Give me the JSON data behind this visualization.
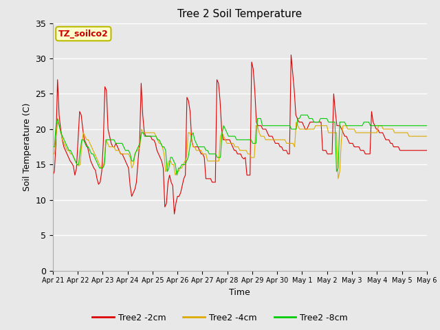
{
  "title": "Tree 2 Soil Temperature",
  "xlabel": "Time",
  "ylabel": "Soil Temperature (C)",
  "annotation_text": "TZ_soilco2",
  "annotation_bg": "#ffffcc",
  "annotation_border": "#bbbb00",
  "annotation_fg": "#cc0000",
  "ylim": [
    0,
    35
  ],
  "yticks": [
    0,
    5,
    10,
    15,
    20,
    25,
    30,
    35
  ],
  "bg_color": "#e8e8e8",
  "grid_color": "#ffffff",
  "line_colors": [
    "#dd0000",
    "#ddaa00",
    "#00cc00"
  ],
  "line_labels": [
    "Tree2 -2cm",
    "Tree2 -4cm",
    "Tree2 -8cm"
  ],
  "x_tick_labels": [
    "Apr 21",
    "Apr 22",
    "Apr 23",
    "Apr 24",
    "Apr 25",
    "Apr 26",
    "Apr 27",
    "Apr 28",
    "Apr 29",
    "Apr 30",
    "May 1",
    "May 2",
    "May 3",
    "May 4",
    "May 5",
    "May 6"
  ],
  "red_data": [
    13.5,
    14.0,
    18.0,
    27.0,
    22.0,
    20.0,
    18.5,
    17.5,
    17.0,
    16.5,
    16.0,
    15.5,
    15.2,
    14.8,
    13.5,
    14.5,
    18.5,
    22.5,
    22.0,
    20.0,
    18.5,
    18.0,
    17.5,
    16.5,
    15.5,
    15.0,
    14.5,
    14.2,
    13.0,
    12.2,
    12.5,
    14.0,
    18.0,
    26.0,
    25.5,
    20.0,
    19.0,
    18.0,
    17.5,
    17.5,
    18.0,
    17.5,
    17.0,
    16.5,
    16.5,
    16.0,
    15.5,
    15.0,
    14.5,
    12.0,
    10.5,
    11.0,
    11.5,
    12.5,
    15.5,
    18.0,
    26.5,
    22.0,
    19.5,
    19.0,
    19.0,
    19.0,
    19.0,
    18.5,
    18.5,
    18.0,
    17.0,
    16.5,
    16.0,
    15.5,
    14.5,
    9.0,
    9.5,
    12.5,
    13.5,
    12.5,
    12.0,
    8.0,
    9.5,
    10.5,
    10.5,
    11.0,
    12.0,
    13.0,
    13.5,
    24.5,
    24.0,
    22.5,
    18.5,
    17.5,
    17.5,
    17.5,
    17.5,
    17.0,
    16.5,
    16.5,
    16.0,
    13.0,
    13.0,
    13.0,
    13.0,
    12.5,
    12.5,
    12.5,
    27.0,
    26.5,
    24.0,
    20.0,
    18.5,
    18.5,
    18.5,
    18.5,
    18.5,
    18.0,
    17.5,
    17.0,
    17.0,
    16.5,
    16.5,
    16.5,
    16.0,
    15.8,
    16.0,
    13.5,
    13.5,
    13.5,
    29.5,
    28.5,
    25.5,
    21.0,
    20.5,
    20.5,
    20.5,
    20.0,
    20.0,
    20.0,
    19.5,
    19.0,
    19.0,
    19.0,
    18.5,
    18.0,
    18.0,
    18.0,
    17.5,
    17.5,
    17.0,
    17.0,
    17.0,
    16.5,
    16.5,
    30.5,
    28.0,
    25.5,
    22.0,
    21.5,
    21.0,
    21.0,
    21.0,
    20.5,
    20.0,
    20.0,
    20.5,
    21.0,
    21.0,
    21.0,
    21.0,
    21.0,
    21.0,
    21.0,
    21.0,
    17.0,
    17.0,
    17.0,
    16.5,
    16.5,
    16.5,
    16.5,
    25.0,
    22.5,
    20.5,
    20.5,
    20.5,
    20.0,
    19.5,
    19.0,
    19.0,
    18.5,
    18.0,
    18.0,
    18.0,
    17.5,
    17.5,
    17.5,
    17.5,
    17.0,
    17.0,
    17.0,
    16.5,
    16.5,
    16.5,
    16.5,
    22.5,
    21.0,
    20.5,
    20.0,
    20.0,
    19.5,
    19.5,
    19.5,
    19.0,
    18.5,
    18.5,
    18.5,
    18.0,
    18.0,
    17.5,
    17.5,
    17.5,
    17.5,
    17.0,
    17.0,
    17.0,
    17.0,
    17.0,
    17.0,
    17.0,
    17.0,
    17.0,
    17.0,
    17.0,
    17.0,
    17.0,
    17.0,
    17.0,
    17.0,
    17.0,
    17.0
  ],
  "orange_data": [
    16.5,
    16.5,
    19.0,
    21.0,
    20.5,
    19.5,
    18.5,
    18.0,
    17.5,
    17.0,
    17.0,
    16.5,
    16.5,
    16.0,
    15.5,
    15.0,
    14.8,
    15.0,
    18.0,
    19.5,
    19.0,
    18.5,
    18.5,
    18.0,
    17.5,
    17.0,
    16.5,
    16.0,
    15.5,
    15.0,
    14.5,
    14.5,
    15.5,
    18.5,
    18.0,
    17.5,
    17.5,
    17.5,
    17.5,
    17.0,
    17.0,
    17.0,
    16.5,
    16.5,
    16.5,
    16.5,
    16.5,
    16.5,
    16.0,
    14.5,
    15.0,
    16.5,
    17.0,
    17.0,
    17.5,
    20.0,
    19.5,
    19.5,
    19.5,
    19.5,
    19.5,
    19.5,
    19.5,
    19.5,
    19.0,
    18.5,
    18.0,
    18.0,
    17.5,
    16.5,
    14.0,
    14.5,
    15.5,
    15.5,
    15.0,
    15.0,
    13.5,
    14.0,
    14.0,
    14.5,
    14.5,
    15.0,
    15.5,
    16.0,
    19.5,
    19.5,
    18.5,
    17.5,
    17.5,
    17.0,
    17.0,
    17.0,
    17.0,
    16.5,
    16.5,
    16.5,
    15.5,
    15.5,
    15.5,
    15.5,
    15.5,
    15.5,
    15.5,
    15.5,
    19.0,
    19.5,
    19.0,
    18.5,
    18.0,
    18.0,
    18.0,
    18.0,
    18.0,
    17.5,
    17.5,
    17.5,
    17.0,
    17.0,
    17.0,
    17.0,
    17.0,
    16.5,
    16.5,
    16.0,
    16.0,
    16.0,
    20.5,
    20.5,
    19.5,
    19.0,
    19.0,
    19.0,
    18.5,
    18.5,
    18.5,
    18.5,
    18.5,
    18.5,
    18.5,
    18.5,
    18.5,
    18.5,
    18.5,
    18.5,
    18.5,
    18.0,
    18.0,
    18.0,
    18.0,
    18.0,
    17.5,
    21.0,
    20.5,
    20.0,
    20.0,
    20.0,
    20.0,
    20.0,
    20.0,
    20.0,
    20.0,
    20.0,
    20.0,
    20.5,
    20.5,
    20.5,
    20.5,
    20.5,
    20.5,
    20.5,
    20.5,
    19.5,
    19.5,
    19.5,
    19.5,
    19.5,
    19.5,
    13.0,
    14.0,
    18.5,
    20.5,
    20.5,
    20.5,
    20.0,
    20.0,
    20.0,
    20.0,
    20.0,
    19.5,
    19.5,
    19.5,
    19.5,
    19.5,
    19.5,
    19.5,
    19.5,
    19.5,
    19.5,
    19.5,
    19.5,
    19.5,
    19.5,
    20.5,
    20.5,
    20.5,
    20.0,
    20.0,
    20.0,
    20.0,
    20.0,
    20.0,
    20.0,
    19.5,
    19.5,
    19.5,
    19.5,
    19.5,
    19.5,
    19.5,
    19.5,
    19.5,
    19.0,
    19.0,
    19.0,
    19.0,
    19.0,
    19.0,
    19.0,
    19.0,
    19.0,
    19.0,
    19.0,
    19.0
  ],
  "green_data": [
    17.5,
    17.5,
    20.5,
    21.5,
    20.5,
    19.5,
    19.0,
    18.5,
    18.0,
    17.5,
    17.0,
    17.0,
    16.5,
    16.0,
    15.5,
    15.0,
    15.0,
    17.0,
    18.5,
    18.5,
    18.0,
    17.5,
    17.5,
    17.0,
    16.5,
    16.5,
    16.0,
    15.5,
    15.0,
    14.5,
    14.5,
    14.5,
    15.0,
    18.5,
    18.5,
    18.5,
    18.5,
    18.5,
    18.5,
    18.0,
    18.0,
    18.0,
    18.0,
    18.0,
    17.5,
    17.0,
    17.0,
    17.0,
    16.5,
    15.5,
    15.5,
    16.5,
    17.0,
    17.5,
    18.0,
    19.5,
    19.5,
    19.0,
    19.0,
    19.0,
    19.0,
    19.0,
    19.0,
    19.0,
    19.0,
    18.5,
    18.5,
    18.0,
    17.5,
    17.5,
    17.0,
    14.0,
    14.5,
    16.0,
    16.0,
    15.5,
    15.0,
    13.5,
    14.5,
    14.5,
    15.0,
    15.0,
    15.0,
    15.5,
    16.0,
    17.5,
    19.0,
    19.5,
    18.5,
    18.0,
    17.5,
    17.5,
    17.5,
    17.5,
    17.5,
    17.0,
    17.0,
    16.5,
    16.5,
    16.5,
    16.5,
    16.5,
    16.0,
    16.0,
    16.0,
    19.5,
    20.5,
    20.0,
    19.5,
    19.0,
    19.0,
    19.0,
    19.0,
    19.0,
    18.5,
    18.5,
    18.5,
    18.5,
    18.5,
    18.5,
    18.5,
    18.5,
    18.5,
    18.5,
    18.0,
    18.0,
    18.0,
    21.5,
    21.5,
    21.5,
    20.5,
    20.5,
    20.5,
    20.5,
    20.5,
    20.5,
    20.5,
    20.5,
    20.5,
    20.5,
    20.5,
    20.5,
    20.5,
    20.5,
    20.5,
    20.5,
    20.5,
    20.5,
    20.0,
    20.0,
    20.0,
    20.0,
    21.5,
    21.5,
    22.0,
    22.0,
    22.0,
    22.0,
    22.0,
    21.5,
    21.5,
    21.5,
    21.0,
    21.0,
    21.0,
    21.0,
    21.5,
    21.5,
    21.5,
    21.5,
    21.5,
    21.0,
    21.0,
    21.0,
    21.0,
    21.0,
    14.0,
    14.5,
    21.0,
    21.0,
    21.0,
    21.0,
    20.5,
    20.5,
    20.5,
    20.5,
    20.5,
    20.5,
    20.5,
    20.5,
    20.5,
    20.5,
    20.5,
    21.0,
    21.0,
    21.0,
    21.0,
    20.5,
    20.5,
    20.5,
    20.5,
    20.5,
    20.5,
    20.5,
    20.5,
    20.5,
    20.5,
    20.5,
    20.5,
    20.5,
    20.5,
    20.5,
    20.5,
    20.5,
    20.5,
    20.5,
    20.5,
    20.5,
    20.5,
    20.5,
    20.5,
    20.5,
    20.5,
    20.5,
    20.5,
    20.5,
    20.5,
    20.5,
    20.5,
    20.5,
    20.5,
    20.5,
    20.5
  ]
}
